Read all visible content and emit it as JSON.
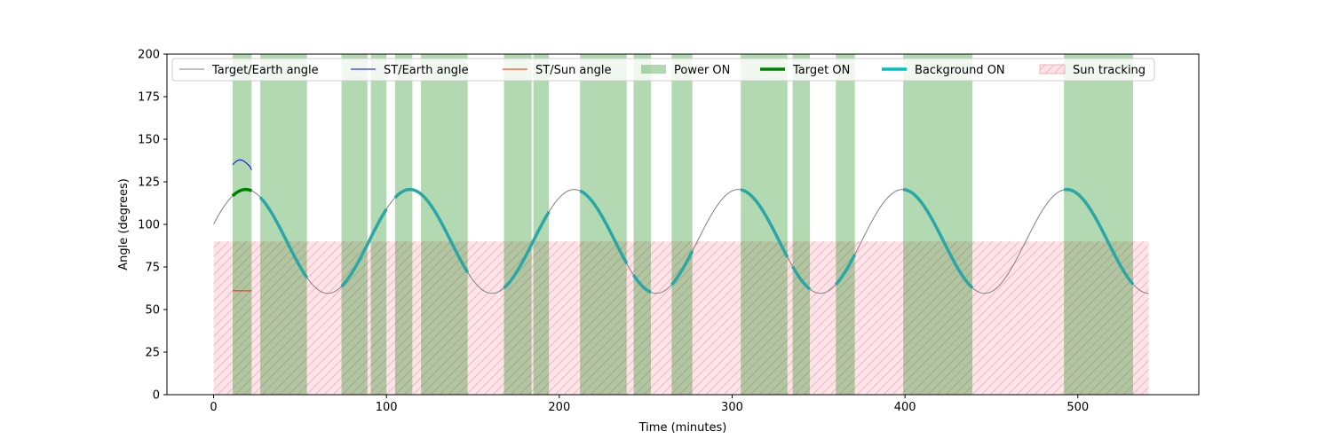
{
  "chart_data": {
    "type": "line",
    "title": "",
    "xlabel": "Time (minutes)",
    "ylabel": "Angle (degrees)",
    "xlim": [
      -27,
      570
    ],
    "ylim": [
      0,
      200
    ],
    "x_ticks": [
      0,
      100,
      200,
      300,
      400,
      500
    ],
    "x_tick_labels": [
      "0",
      "100",
      "200",
      "300",
      "400",
      "500"
    ],
    "y_ticks": [
      0,
      25,
      50,
      75,
      100,
      125,
      150,
      175,
      200
    ],
    "y_tick_labels": [
      "0",
      "25",
      "50",
      "75",
      "100",
      "125",
      "150",
      "175",
      "200"
    ],
    "grid": false,
    "legend_position": "top",
    "legend": [
      {
        "label": "Target/Earth angle",
        "kind": "line",
        "color": "#808080",
        "width": 1
      },
      {
        "label": "ST/Earth angle",
        "kind": "line",
        "color": "#0000ff",
        "width": 1
      },
      {
        "label": "ST/Sun angle",
        "kind": "line",
        "color": "#ff2200",
        "width": 1
      },
      {
        "label": "Power ON",
        "kind": "patch",
        "color": "#008000",
        "opacity": 0.3
      },
      {
        "label": "Target ON",
        "kind": "line",
        "color": "#008000",
        "width": 3.5
      },
      {
        "label": "Background ON",
        "kind": "line",
        "color": "#00bfbf",
        "width": 3.5
      },
      {
        "label": "Sun tracking",
        "kind": "hatch",
        "color": "#ffc0cb",
        "opacity": 0.45
      }
    ],
    "target_earth_angle": {
      "x_start": 0,
      "x_end": 541,
      "x_step": 1,
      "model": "sinusoid",
      "mean": 90,
      "amplitude": 30.5,
      "period_minutes": 95,
      "phase_origin_minutes": 0,
      "y_at_0": 100.2,
      "y_max": 120.5,
      "y_min": 59.5,
      "color": "#808080"
    },
    "st_earth_angle": {
      "x": [
        11,
        13,
        15,
        17,
        19,
        21,
        22
      ],
      "y": [
        135,
        137,
        138,
        137.5,
        136,
        134,
        132
      ],
      "color": "#0000ff"
    },
    "st_sun_angle": {
      "x": [
        11,
        22
      ],
      "y": [
        61,
        61
      ],
      "color": "#ff2200"
    },
    "power_on": [
      [
        11,
        22
      ],
      [
        27,
        54
      ],
      [
        74,
        89
      ],
      [
        91,
        100
      ],
      [
        105,
        115
      ],
      [
        120,
        147
      ],
      [
        168,
        184
      ],
      [
        185,
        194
      ],
      [
        212,
        239
      ],
      [
        243,
        253
      ],
      [
        265,
        277
      ],
      [
        305,
        332
      ],
      [
        335,
        345
      ],
      [
        360,
        371
      ],
      [
        399,
        439
      ],
      [
        492,
        532
      ]
    ],
    "target_on": [
      [
        11,
        22
      ]
    ],
    "background_on": [
      [
        27,
        54
      ],
      [
        74,
        100
      ],
      [
        105,
        147
      ],
      [
        168,
        194
      ],
      [
        212,
        239
      ],
      [
        243,
        253
      ],
      [
        265,
        277
      ],
      [
        305,
        332
      ],
      [
        335,
        345
      ],
      [
        360,
        371
      ],
      [
        399,
        439
      ],
      [
        492,
        532
      ]
    ],
    "sun_tracking": {
      "x": [
        0,
        541
      ],
      "y": [
        0,
        90
      ],
      "color": "#ffc0cb"
    }
  }
}
